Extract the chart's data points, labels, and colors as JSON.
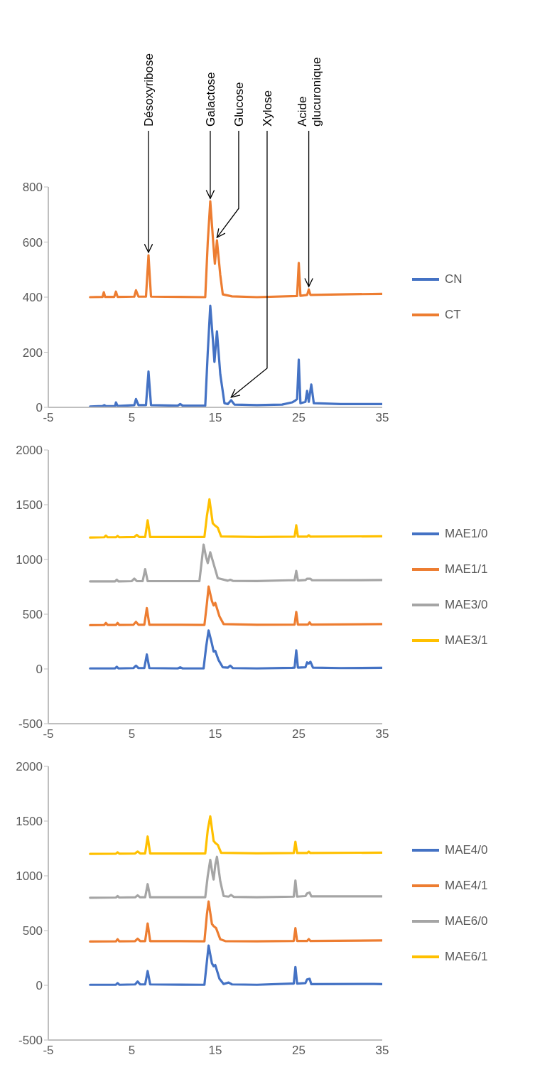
{
  "chart_data": [
    {
      "type": "line",
      "xlim": [
        -5,
        35
      ],
      "xticks": [
        -5,
        5,
        15,
        25,
        35
      ],
      "ylim": [
        0,
        800
      ],
      "yticks": [
        0,
        200,
        400,
        600,
        800
      ],
      "legend": "right",
      "series": [
        {
          "name": "CN",
          "color": "#4472c4",
          "x": [
            0,
            1.5,
            1.7,
            1.9,
            3.0,
            3.1,
            3.3,
            5.3,
            5.5,
            5.8,
            6.7,
            7.0,
            7.3,
            10.5,
            10.8,
            11.1,
            13.8,
            14.1,
            14.4,
            14.7,
            14.9,
            15.2,
            15.6,
            16.1,
            16.5,
            16.9,
            17.3,
            20,
            23,
            24.2,
            24.6,
            24.8,
            25.0,
            25.2,
            25.8,
            26.0,
            26.2,
            26.5,
            26.8,
            30,
            35
          ],
          "values": [
            3,
            5,
            8,
            4,
            5,
            18,
            5,
            8,
            30,
            8,
            8,
            130,
            8,
            6,
            12,
            6,
            6,
            200,
            369,
            250,
            165,
            276,
            120,
            15,
            12,
            26,
            10,
            8,
            10,
            18,
            25,
            30,
            173,
            15,
            20,
            60,
            20,
            83,
            15,
            12,
            12
          ]
        },
        {
          "name": "CT",
          "color": "#ed7d31",
          "x": [
            0,
            1.5,
            1.65,
            1.8,
            2.9,
            3.1,
            3.3,
            5.3,
            5.5,
            5.8,
            6.7,
            7.0,
            7.3,
            13.8,
            14.1,
            14.4,
            14.75,
            14.95,
            15.2,
            15.6,
            15.9,
            17,
            20,
            24.8,
            25.0,
            25.2,
            26.0,
            26.2,
            26.4,
            30,
            35
          ],
          "values": [
            400,
            401,
            418,
            401,
            401,
            420,
            401,
            402,
            425,
            402,
            402,
            552,
            402,
            400,
            600,
            748,
            600,
            521,
            606,
            480,
            410,
            403,
            400,
            404,
            524,
            405,
            408,
            428,
            408,
            410,
            412
          ]
        }
      ],
      "annotations": [
        {
          "text": "Désoxyribose",
          "x": 7.0,
          "y": 552
        },
        {
          "text": "Galactose",
          "x": 14.4,
          "y": 748
        },
        {
          "text": "Glucose",
          "x": 15.2,
          "y": 606
        },
        {
          "text": "Xylose",
          "x": 16.9,
          "y": 26
        },
        {
          "text": "Acide glucuronique",
          "x": 26.2,
          "y": 428
        }
      ]
    },
    {
      "type": "line",
      "xlim": [
        -5,
        35
      ],
      "xticks": [
        -5,
        5,
        15,
        25,
        35
      ],
      "ylim": [
        -500,
        2000
      ],
      "yticks": [
        -500,
        0,
        500,
        1000,
        1500,
        2000
      ],
      "legend": "right",
      "series": [
        {
          "name": "MAE1/0",
          "color": "#4472c4",
          "x": [
            0,
            1.5,
            3.0,
            3.2,
            3.4,
            5.2,
            5.5,
            5.8,
            6.5,
            6.8,
            7.1,
            10.5,
            10.8,
            11.1,
            13.6,
            13.9,
            14.2,
            14.6,
            14.8,
            15.0,
            15.4,
            15.9,
            16.5,
            16.8,
            17.1,
            20,
            24.2,
            24.5,
            24.7,
            24.9,
            25.8,
            26.0,
            26.2,
            26.4,
            26.7,
            30,
            35
          ],
          "values": [
            5,
            5,
            5,
            20,
            5,
            8,
            30,
            8,
            8,
            132,
            8,
            5,
            15,
            5,
            5,
            200,
            352,
            230,
            160,
            165,
            80,
            15,
            12,
            30,
            8,
            5,
            10,
            12,
            170,
            12,
            15,
            60,
            50,
            66,
            12,
            8,
            10
          ]
        },
        {
          "name": "MAE1/1",
          "color": "#ed7d31",
          "x": [
            0,
            1.7,
            1.9,
            2.1,
            3.1,
            3.3,
            3.5,
            5.2,
            5.5,
            5.8,
            6.5,
            6.8,
            7.1,
            13.7,
            14.0,
            14.2,
            14.6,
            14.8,
            15.0,
            15.5,
            16,
            20,
            24.5,
            24.7,
            24.9,
            26.1,
            26.3,
            26.5,
            35
          ],
          "values": [
            400,
            402,
            420,
            402,
            402,
            420,
            402,
            404,
            430,
            404,
            404,
            556,
            404,
            402,
            600,
            752,
            620,
            580,
            604,
            480,
            410,
            404,
            405,
            521,
            405,
            405,
            425,
            405,
            410
          ]
        },
        {
          "name": "MAE3/0",
          "color": "#a5a5a5",
          "x": [
            0,
            3.0,
            3.2,
            3.4,
            5.0,
            5.3,
            5.6,
            6.3,
            6.6,
            6.9,
            13.1,
            13.4,
            13.6,
            13.9,
            14.1,
            14.4,
            14.8,
            15.3,
            16.5,
            16.8,
            17.1,
            20,
            23.8,
            24.5,
            24.7,
            24.9,
            25.8,
            26.0,
            26.4,
            26.6,
            35
          ],
          "values": [
            800,
            800,
            815,
            800,
            802,
            825,
            802,
            802,
            912,
            802,
            802,
            1000,
            1136,
            1020,
            967,
            1066,
            960,
            830,
            806,
            815,
            805,
            803,
            810,
            810,
            895,
            808,
            812,
            824,
            824,
            810,
            812
          ]
        },
        {
          "name": "MAE3/1",
          "color": "#ffc000",
          "x": [
            0,
            1.7,
            1.9,
            2.1,
            3.1,
            3.3,
            3.5,
            5.3,
            5.6,
            5.9,
            6.6,
            6.9,
            7.2,
            13.7,
            14.0,
            14.3,
            14.7,
            15.0,
            15.3,
            15.7,
            20,
            24.5,
            24.7,
            24.9,
            26.0,
            26.2,
            26.4,
            35
          ],
          "values": [
            1200,
            1203,
            1218,
            1203,
            1203,
            1215,
            1203,
            1205,
            1225,
            1205,
            1205,
            1358,
            1205,
            1205,
            1400,
            1549,
            1330,
            1308,
            1290,
            1210,
            1205,
            1208,
            1312,
            1208,
            1208,
            1222,
            1208,
            1212
          ]
        }
      ]
    },
    {
      "type": "line",
      "xlim": [
        -5,
        35
      ],
      "xticks": [
        -5,
        5,
        15,
        25,
        35
      ],
      "ylim": [
        -500,
        2000
      ],
      "yticks": [
        -500,
        0,
        500,
        1000,
        1500,
        2000
      ],
      "legend": "right",
      "series": [
        {
          "name": "MAE4/0",
          "color": "#4472c4",
          "x": [
            0,
            3.1,
            3.3,
            3.5,
            5.4,
            5.7,
            6.0,
            6.6,
            6.9,
            7.2,
            13.7,
            14.0,
            14.2,
            14.6,
            14.8,
            15.0,
            15.5,
            16.0,
            16.6,
            17,
            20,
            24.1,
            24.4,
            24.6,
            24.8,
            25.8,
            26.0,
            26.3,
            26.5,
            34,
            35
          ],
          "values": [
            5,
            5,
            20,
            5,
            8,
            35,
            8,
            8,
            130,
            8,
            5,
            220,
            363,
            200,
            175,
            185,
            60,
            12,
            25,
            8,
            5,
            15,
            15,
            167,
            15,
            20,
            54,
            60,
            10,
            12,
            10
          ]
        },
        {
          "name": "MAE4/1",
          "color": "#ed7d31",
          "x": [
            0,
            3.1,
            3.3,
            3.5,
            5.4,
            5.7,
            6.0,
            6.6,
            6.9,
            7.2,
            13.7,
            14.0,
            14.2,
            14.6,
            14.8,
            15.1,
            15.6,
            16.2,
            20,
            24.4,
            24.6,
            24.8,
            26.0,
            26.2,
            26.4,
            35
          ],
          "values": [
            400,
            402,
            420,
            402,
            404,
            425,
            404,
            404,
            565,
            404,
            402,
            650,
            765,
            560,
            540,
            522,
            420,
            404,
            402,
            405,
            522,
            405,
            405,
            422,
            405,
            410
          ]
        },
        {
          "name": "MAE6/0",
          "color": "#a5a5a5",
          "x": [
            0,
            3.1,
            3.3,
            3.5,
            5.4,
            5.7,
            6.0,
            6.6,
            6.9,
            7.2,
            13.8,
            14.1,
            14.4,
            14.7,
            14.8,
            15.0,
            15.2,
            15.6,
            16.0,
            16.6,
            16.9,
            17.2,
            20,
            24.4,
            24.6,
            24.8,
            25.8,
            26.0,
            26.3,
            26.5,
            35
          ],
          "values": [
            800,
            802,
            815,
            802,
            804,
            822,
            804,
            804,
            924,
            804,
            804,
            1000,
            1146,
            1000,
            967,
            1100,
            1174,
            950,
            815,
            810,
            825,
            808,
            805,
            810,
            957,
            810,
            815,
            840,
            848,
            812,
            812
          ]
        },
        {
          "name": "MAE6/1",
          "color": "#ffc000",
          "x": [
            0,
            3.1,
            3.3,
            3.5,
            5.4,
            5.7,
            6.0,
            6.6,
            6.9,
            7.2,
            13.8,
            14.1,
            14.4,
            14.8,
            15.0,
            15.3,
            15.7,
            20,
            24.4,
            24.6,
            24.8,
            26.0,
            26.2,
            26.4,
            35
          ],
          "values": [
            1200,
            1202,
            1215,
            1202,
            1204,
            1222,
            1204,
            1204,
            1359,
            1204,
            1204,
            1420,
            1543,
            1320,
            1300,
            1283,
            1210,
            1205,
            1208,
            1311,
            1208,
            1208,
            1222,
            1208,
            1212
          ]
        }
      ]
    }
  ]
}
